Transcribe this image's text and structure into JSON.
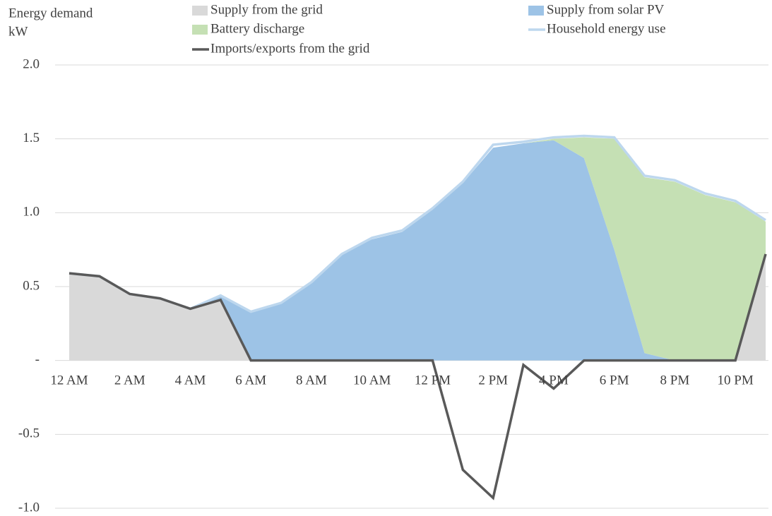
{
  "chart_data": {
    "type": "area",
    "title": "Energy demand",
    "units": "kW",
    "categories": [
      "12 AM",
      null,
      "2 AM",
      null,
      "4 AM",
      null,
      "6 AM",
      null,
      "8 AM",
      null,
      "10 AM",
      null,
      "12 PM",
      null,
      "2 PM",
      null,
      "4 PM",
      null,
      "6 PM",
      null,
      "8 PM",
      null,
      "10 PM",
      null
    ],
    "series": [
      {
        "name": "Supply from the grid",
        "type": "area",
        "color": "#d9d9d9",
        "values": [
          0.59,
          0.57,
          0.45,
          0.42,
          0.35,
          0.41,
          0,
          0,
          0,
          0,
          0,
          0,
          0,
          0,
          0,
          0,
          0,
          0,
          0,
          0,
          0,
          0,
          0,
          0.72
        ]
      },
      {
        "name": "Supply from solar PV",
        "type": "area",
        "color": "#9dc3e6",
        "values": [
          0,
          0,
          0,
          0,
          0,
          0.03,
          0.33,
          0.39,
          0.53,
          0.72,
          0.82,
          0.87,
          1.02,
          1.2,
          1.44,
          1.47,
          1.49,
          1.37,
          0.75,
          0.05,
          0,
          0,
          0,
          0
        ]
      },
      {
        "name": "Battery discharge",
        "type": "area",
        "color": "#c5e0b4",
        "values": [
          0,
          0,
          0,
          0,
          0,
          0,
          0,
          0,
          0,
          0,
          0,
          0,
          0,
          0,
          0,
          0,
          0.01,
          0.14,
          0.75,
          1.19,
          1.21,
          1.12,
          1.07,
          0.22
        ]
      },
      {
        "name": "Household energy use",
        "type": "line",
        "color": "#bdd7ee",
        "values": [
          0.59,
          0.57,
          0.45,
          0.42,
          0.35,
          0.44,
          0.33,
          0.39,
          0.53,
          0.72,
          0.83,
          0.88,
          1.03,
          1.21,
          1.46,
          1.48,
          1.51,
          1.52,
          1.51,
          1.25,
          1.22,
          1.13,
          1.08,
          0.95
        ]
      },
      {
        "name": "Imports/exports from the grid",
        "type": "line",
        "color": "#595959",
        "values": [
          0.59,
          0.57,
          0.45,
          0.42,
          0.35,
          0.41,
          0,
          0,
          0,
          0,
          0,
          0,
          0,
          -0.74,
          -0.93,
          -0.03,
          -0.19,
          0,
          0,
          0,
          0,
          0,
          0,
          0.72
        ]
      }
    ],
    "ylim": [
      -1,
      2
    ],
    "yticks": [
      {
        "value": -1,
        "label": "-1.0"
      },
      -0.5,
      {
        "value": 0,
        "label": "-"
      },
      0.5,
      {
        "value": 1,
        "label": "1.0"
      },
      {
        "value": 1.5,
        "label": "1.5"
      },
      {
        "value": 2,
        "label": "2.0"
      }
    ],
    "grid": true
  }
}
